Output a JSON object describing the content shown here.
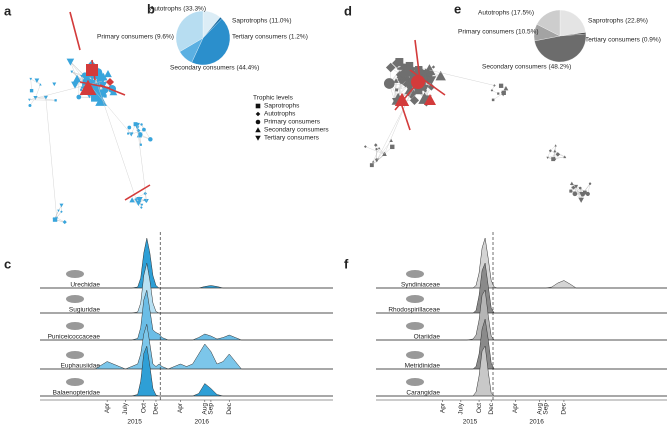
{
  "panel_labels": [
    "a",
    "b",
    "c",
    "d",
    "e",
    "f"
  ],
  "legend": {
    "title": "Trophic levels",
    "items": [
      "Saprotrophs",
      "Autotrophs",
      "Primary consumers",
      "Secondary consumers",
      "Tertiary consumers"
    ]
  },
  "chart_data": [
    {
      "type": "pie",
      "values": [
        11.0,
        1.2,
        44.4,
        9.6,
        33.3
      ],
      "value_labels": [
        "Saprotrophs (11.0%)",
        "Tertiary consumers (1.2%)",
        "Secondary consumers (44.4%)",
        "Primary consumers (9.6%)",
        "Autotrophs (33.3%)"
      ],
      "colors": [
        "#dcedf6",
        "#14679e",
        "#2b8fcc",
        "#5bb0e2",
        "#b7ddf1"
      ]
    },
    {
      "type": "pie",
      "values": [
        22.8,
        0.9,
        48.2,
        10.5,
        17.5
      ],
      "value_labels": [
        "Saprotrophs (22.8%)",
        "Tertiary consumers (0.9%)",
        "Secondary consumers (48.2%)",
        "Primary consumers (10.5%)",
        "Autotrophs (17.5%)"
      ],
      "colors": [
        "#e4e4e4",
        "#303030",
        "#6c6c6c",
        "#a3a3a3",
        "#cdcdcd"
      ]
    },
    {
      "type": "ridgeline",
      "x": [
        -8,
        1,
        3,
        5,
        6,
        7,
        8,
        8.5,
        9,
        9.5,
        10,
        10.5,
        11,
        11.5,
        12,
        13,
        14,
        15,
        16,
        17,
        18,
        19,
        20,
        21,
        22,
        23,
        24,
        25,
        40
      ],
      "xlim": [
        -8,
        40
      ],
      "xticks": [
        {
          "value": 3,
          "label": "Apr"
        },
        {
          "value": 6,
          "label": "July"
        },
        {
          "value": 9,
          "label": "Oct"
        },
        {
          "value": 11,
          "label": "Dec"
        },
        {
          "value": 15,
          "label": "Apr"
        },
        {
          "value": 19,
          "label": "Aug"
        },
        {
          "value": 20,
          "label": "Sep"
        },
        {
          "value": 23,
          "label": "Dec"
        }
      ],
      "years": [
        {
          "value": 7.5,
          "label": "2015"
        },
        {
          "value": 18.5,
          "label": "2016"
        }
      ],
      "vline": 11.7,
      "series": [
        {
          "name": "Urechidae",
          "color": "#2e9fd6",
          "values": [
            0,
            0,
            0,
            0,
            0,
            0,
            0.02,
            0.2,
            0.7,
            1,
            0.7,
            0.25,
            0.05,
            0,
            0,
            0,
            0,
            0,
            0,
            0,
            0,
            0.03,
            0.05,
            0.03,
            0,
            0,
            0,
            0,
            0
          ]
        },
        {
          "name": "Sugiuridae",
          "color": "#b8e0f2",
          "values": [
            0,
            0,
            0,
            0,
            0,
            0,
            0.02,
            0.2,
            0.75,
            1,
            0.65,
            0.2,
            0.03,
            0,
            0,
            0,
            0,
            0,
            0,
            0,
            0,
            0,
            0,
            0,
            0,
            0,
            0,
            0,
            0
          ]
        },
        {
          "name": "Puniceicoccaceae",
          "color": "#6bbde6",
          "values": [
            0,
            0,
            0,
            0,
            0,
            0,
            0.03,
            0.25,
            0.8,
            1,
            0.6,
            0.2,
            0.15,
            0.12,
            0.05,
            0,
            0,
            0,
            0,
            0,
            0.05,
            0.12,
            0.08,
            0.02,
            0.05,
            0.1,
            0.05,
            0,
            0
          ]
        },
        {
          "name": "Euphausiidae",
          "color": "#7cc6ea",
          "values": [
            0,
            0,
            0.15,
            0.05,
            0,
            0.05,
            0.1,
            0.3,
            0.7,
            0.9,
            0.5,
            0.1,
            0.05,
            0.1,
            0.05,
            0,
            0.05,
            0.1,
            0.05,
            0.1,
            0.3,
            0.5,
            0.35,
            0.1,
            0.15,
            0.3,
            0.15,
            0,
            0
          ]
        },
        {
          "name": "Balaenopteridae",
          "color": "#2e9fd6",
          "values": [
            0,
            0,
            0,
            0,
            0,
            0,
            0.03,
            0.3,
            0.85,
            1,
            0.6,
            0.15,
            0.02,
            0,
            0,
            0,
            0,
            0,
            0,
            0,
            0.05,
            0.25,
            0.15,
            0.03,
            0,
            0,
            0,
            0,
            0
          ]
        }
      ]
    },
    {
      "type": "ridgeline",
      "x": [
        -8,
        1,
        3,
        5,
        6,
        7,
        8,
        8.5,
        9,
        9.5,
        10,
        10.5,
        11,
        11.5,
        12,
        13,
        14,
        15,
        16,
        17,
        18,
        19,
        20,
        21,
        22,
        23,
        24,
        25,
        40
      ],
      "xlim": [
        -8,
        40
      ],
      "xticks": [
        {
          "value": 3,
          "label": "Apr"
        },
        {
          "value": 6,
          "label": "July"
        },
        {
          "value": 9,
          "label": "Oct"
        },
        {
          "value": 11,
          "label": "Dec"
        },
        {
          "value": 15,
          "label": "Apr"
        },
        {
          "value": 19,
          "label": "Aug"
        },
        {
          "value": 20,
          "label": "Sep"
        },
        {
          "value": 23,
          "label": "Dec"
        }
      ],
      "years": [
        {
          "value": 7.5,
          "label": "2015"
        },
        {
          "value": 18.5,
          "label": "2016"
        }
      ],
      "vline": 11.3,
      "series": [
        {
          "name": "Syndiniaceae",
          "color": "#d4d4d4",
          "values": [
            0,
            0,
            0,
            0,
            0,
            0,
            0,
            0.05,
            0.3,
            0.8,
            1,
            0.6,
            0.15,
            0.02,
            0,
            0,
            0,
            0,
            0,
            0,
            0,
            0,
            0,
            0.02,
            0.1,
            0.15,
            0.08,
            0,
            0
          ]
        },
        {
          "name": "Rhodospirillaceae",
          "color": "#8a8a8a",
          "values": [
            0,
            0,
            0,
            0,
            0,
            0,
            0,
            0.05,
            0.35,
            0.85,
            1,
            0.55,
            0.1,
            0,
            0,
            0,
            0,
            0,
            0,
            0,
            0,
            0,
            0,
            0,
            0,
            0,
            0,
            0,
            0
          ]
        },
        {
          "name": "Otariidae",
          "color": "#b5b5b5",
          "values": [
            0,
            0,
            0,
            0,
            0,
            0,
            0.02,
            0.1,
            0.4,
            0.9,
            1,
            0.5,
            0.08,
            0,
            0,
            0,
            0,
            0,
            0,
            0,
            0,
            0,
            0,
            0,
            0,
            0,
            0,
            0,
            0
          ]
        },
        {
          "name": "Metridinidae",
          "color": "#8a8a8a",
          "values": [
            0,
            0,
            0,
            0,
            0,
            0,
            0,
            0.05,
            0.3,
            0.8,
            1,
            0.6,
            0.12,
            0,
            0,
            0,
            0,
            0,
            0,
            0,
            0,
            0,
            0,
            0,
            0,
            0,
            0,
            0,
            0
          ]
        },
        {
          "name": "Carangidae",
          "color": "#c8c8c8",
          "values": [
            0,
            0,
            0,
            0,
            0,
            0,
            0,
            0.08,
            0.4,
            0.9,
            1,
            0.5,
            0.06,
            0,
            0,
            0,
            0,
            0,
            0,
            0,
            0,
            0,
            0,
            0,
            0,
            0,
            0,
            0,
            0
          ]
        }
      ]
    }
  ]
}
